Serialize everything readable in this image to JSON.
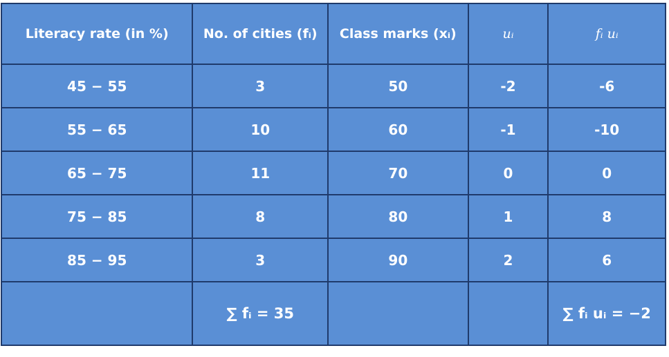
{
  "table": {
    "header": [
      "Literacy rate (in %)",
      "No. of cities (fᵢ)",
      "Class marks (xᵢ)",
      "uᵢ",
      "fᵢ uᵢ"
    ],
    "rows": [
      [
        "45 − 55",
        "3",
        "50",
        "-2",
        "-6"
      ],
      [
        "55 − 65",
        "10",
        "60",
        "-1",
        "-10"
      ],
      [
        "65 − 75",
        "11",
        "70",
        "0",
        "0"
      ],
      [
        "75 − 85",
        "8",
        "80",
        "1",
        "8"
      ],
      [
        "85 − 95",
        "3",
        "90",
        "2",
        "6"
      ]
    ],
    "footer": {
      "sum_f": "∑ fᵢ = 35",
      "sum_fu": "∑ fᵢ uᵢ = −2"
    }
  }
}
